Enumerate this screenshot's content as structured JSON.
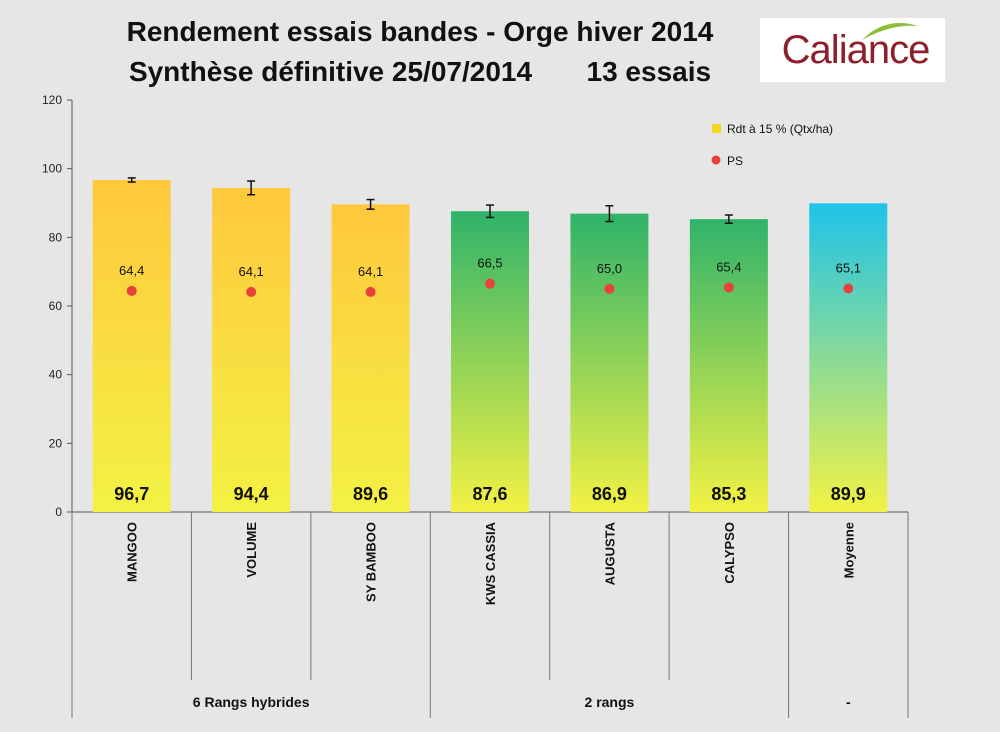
{
  "title_line1": "Rendement essais bandes - Orge hiver 2014",
  "title_line2": "Synthèse définitive 25/07/2014       13 essais",
  "logo": {
    "text": "Caliance",
    "color": "#8e1f2d",
    "leaf_color": "#8bbf3a"
  },
  "chart_data": {
    "type": "bar",
    "categories": [
      "MANGOO",
      "VOLUME",
      "SY BAMBOO",
      "KWS CASSIA",
      "AUGUSTA",
      "CALYPSO",
      "Moyenne"
    ],
    "groups": [
      {
        "label": "6 Rangs hybrides",
        "categories": [
          "MANGOO",
          "VOLUME",
          "SY BAMBOO"
        ]
      },
      {
        "label": "2 rangs",
        "categories": [
          "KWS CASSIA",
          "AUGUSTA",
          "CALYPSO"
        ]
      },
      {
        "label": "-",
        "categories": [
          "Moyenne"
        ]
      }
    ],
    "series": [
      {
        "name": "Rdt à 15 % (Qtx/ha)",
        "type": "bar",
        "values": [
          96.7,
          94.4,
          89.6,
          87.6,
          86.9,
          85.3,
          89.9
        ],
        "labels": [
          "96,7",
          "94,4",
          "89,6",
          "87,6",
          "86,9",
          "85,3",
          "89,9"
        ],
        "error": [
          0.6,
          2.0,
          1.4,
          1.8,
          2.3,
          1.2,
          null
        ],
        "colors": [
          "#ffc83d",
          "#ffc83d",
          "#ffc83d",
          "#2fb36a",
          "#2fb36a",
          "#2fb36a",
          "#1ec3ea"
        ],
        "color_bottom": "#f3f244"
      },
      {
        "name": "PS",
        "type": "scatter",
        "values": [
          64.4,
          64.1,
          64.1,
          66.5,
          65.0,
          65.4,
          65.1
        ],
        "labels": [
          "64,4",
          "64,1",
          "64,1",
          "66,5",
          "65,0",
          "65,4",
          "65,1"
        ],
        "color": "#e8413a"
      }
    ],
    "ylim": [
      0,
      120
    ],
    "yticks": [
      0,
      20,
      40,
      60,
      80,
      100,
      120
    ],
    "legend_position": "top-right",
    "legend_swatch_color": "#f7d71e"
  }
}
